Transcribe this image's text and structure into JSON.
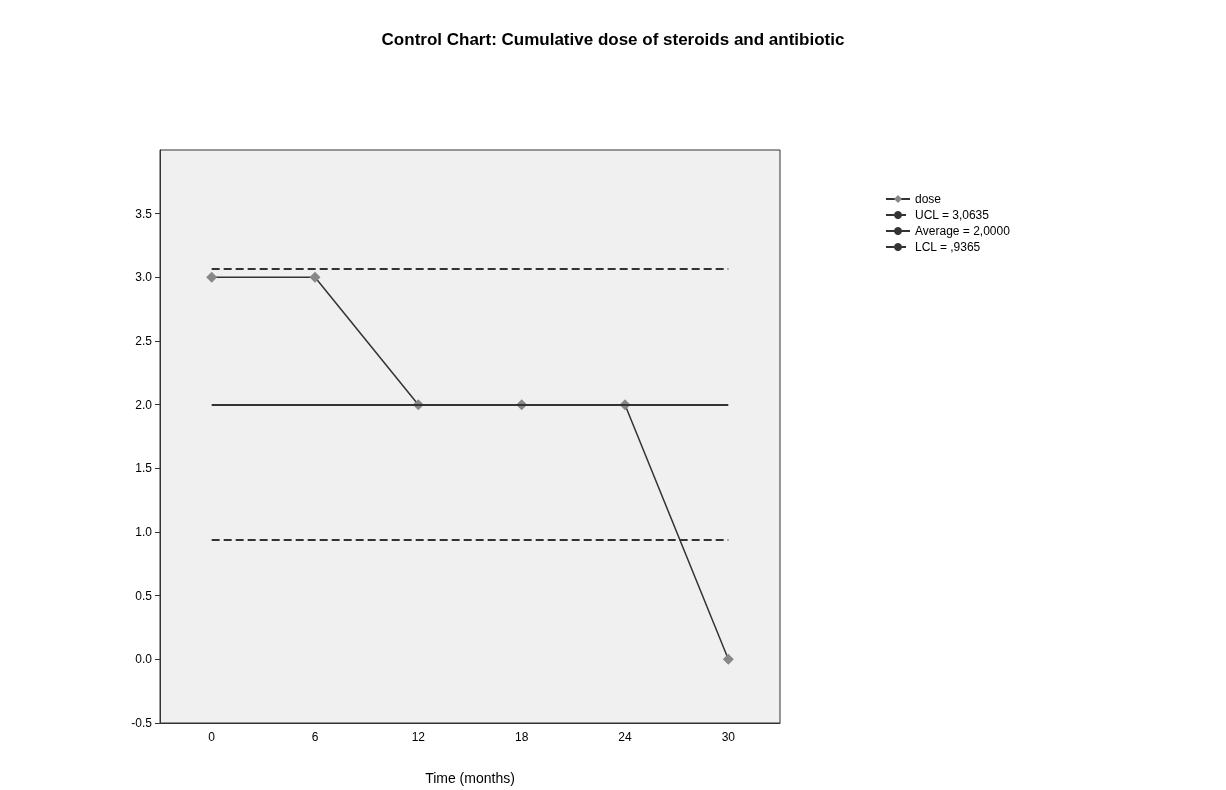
{
  "chart_data": {
    "type": "line",
    "title": "Control Chart: Cumulative dose of steroids and antibiotic",
    "xlabel": "Time (months)",
    "categories": [
      "0",
      "6",
      "12",
      "18",
      "24",
      "30"
    ],
    "series": [
      {
        "name": "dose",
        "color": "#333333",
        "values": [
          3,
          3,
          2,
          2,
          2,
          0
        ]
      }
    ],
    "ref_lines": [
      {
        "axis": "y",
        "value": 3.0635,
        "label": "UCL = 3,0635",
        "color": "#333333",
        "line_style": "dashed"
      },
      {
        "axis": "y",
        "value": 2,
        "label": "Average = 2,0000",
        "color": "#333333",
        "line_style": "solid"
      },
      {
        "axis": "y",
        "value": 0.9365,
        "label": "LCL = ,9365",
        "color": "#333333",
        "line_style": "dashed"
      }
    ],
    "ylim": [
      -0.5,
      4
    ],
    "yticks": [
      -0.5,
      {
        "value": 0,
        "label": "0.0"
      },
      0.5,
      {
        "value": 1,
        "label": "1.0"
      },
      1.5,
      {
        "value": 2,
        "label": "2.0"
      },
      2.5,
      {
        "value": 3,
        "label": "3.0"
      },
      3.5
    ],
    "marker": "diamond",
    "line_style": "solid",
    "grid": false,
    "legend": "right"
  }
}
